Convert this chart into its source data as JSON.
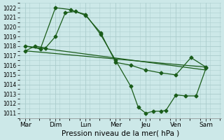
{
  "background_color": "#cce8e8",
  "grid_color": "#aacccc",
  "line_color": "#1a5c1a",
  "marker_color": "#1a5c1a",
  "xlabel": "Pression niveau de la mer( hPa )",
  "xlabel_fontsize": 7.5,
  "ylim": [
    1010.5,
    1022.5
  ],
  "yticks": [
    1011,
    1012,
    1013,
    1014,
    1015,
    1016,
    1017,
    1018,
    1019,
    1020,
    1021,
    1022
  ],
  "xtick_labels": [
    "Mar",
    "Dim",
    "Lun",
    "Mer",
    "Jeu",
    "Ven",
    "Sam"
  ],
  "xtick_positions": [
    0,
    1,
    2,
    3,
    4,
    5,
    6
  ],
  "series1_x": [
    0,
    0.5,
    1.0,
    1.5,
    2.0,
    2.5,
    3.0,
    3.5,
    4.0,
    4.5,
    5.0,
    5.5,
    6.0
  ],
  "series1_y": [
    1018.0,
    1017.7,
    1022.0,
    1021.8,
    1021.2,
    1019.4,
    1016.3,
    1016.0,
    1015.5,
    1015.2,
    1015.0,
    1016.8,
    1015.8
  ],
  "series2_x": [
    0,
    0.33,
    0.67,
    1.0,
    1.33,
    1.67,
    2.0,
    2.5,
    3.0,
    3.5,
    3.75,
    4.0,
    4.25,
    4.5,
    4.67,
    5.0,
    5.33,
    5.67,
    6.0
  ],
  "series2_y": [
    1017.5,
    1018.0,
    1017.8,
    1019.0,
    1021.5,
    1021.6,
    1021.3,
    1019.2,
    1016.5,
    1013.8,
    1011.6,
    1011.0,
    1011.2,
    1011.2,
    1011.3,
    1012.9,
    1012.8,
    1012.8,
    1015.7
  ],
  "series3_x": [
    0,
    6
  ],
  "series3_y": [
    1018.0,
    1015.5
  ],
  "series4_x": [
    0,
    6
  ],
  "series4_y": [
    1017.5,
    1015.8
  ]
}
